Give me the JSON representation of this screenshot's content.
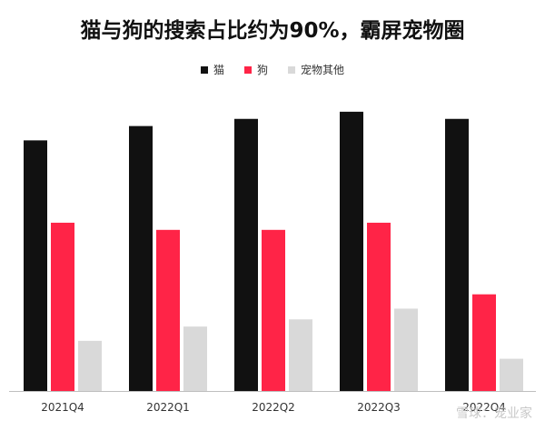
{
  "chart_data": {
    "type": "bar",
    "title": "猫与狗的搜索占比约为90%，霸屏宠物圈",
    "categories": [
      "2021Q4",
      "2022Q1",
      "2022Q2",
      "2022Q3",
      "2022Q4"
    ],
    "series": [
      {
        "name": "猫",
        "color": "#111111",
        "values": [
          70,
          74,
          76,
          78,
          76
        ]
      },
      {
        "name": "狗",
        "color": "#ff2447",
        "values": [
          47,
          45,
          45,
          47,
          27
        ]
      },
      {
        "name": "宠物其他",
        "color": "#d9d9d9",
        "values": [
          14,
          18,
          20,
          23,
          9
        ]
      }
    ],
    "xlabel": "",
    "ylabel": "",
    "ylim": [
      0,
      80
    ],
    "grid": false,
    "legend": "top-center"
  },
  "watermark": "雪球：宠业家"
}
